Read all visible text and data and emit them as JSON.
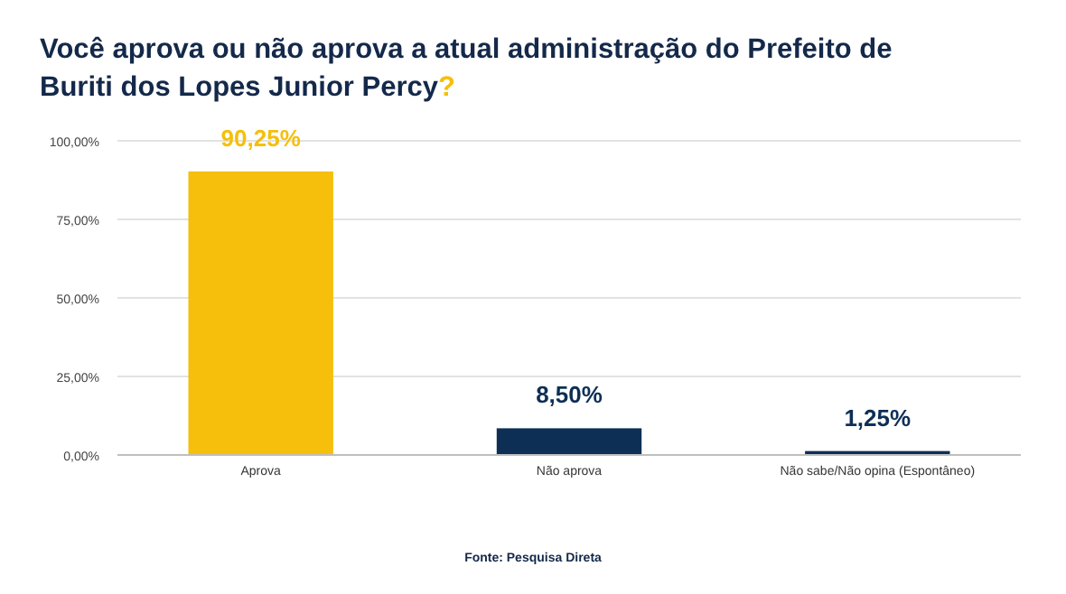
{
  "chart_data": {
    "type": "bar",
    "title": "Você aprova ou não aprova a atual administração do Prefeito de Buriti dos Lopes Junior Percy?",
    "categories": [
      "Aprova",
      "Não aprova",
      "Não sabe/Não opina (Espontâneo)"
    ],
    "values": [
      90.25,
      8.5,
      1.25
    ],
    "colors": [
      "#f5bf0b",
      "#0e2f55",
      "#0e2f55"
    ],
    "value_labels": [
      "90,25%",
      "8,50%",
      "1,25%"
    ],
    "ylim": [
      0,
      100
    ],
    "yticks": [
      {
        "value": 0,
        "label": "0,00%"
      },
      {
        "value": 25,
        "label": "25,00%"
      },
      {
        "value": 50,
        "label": "50,00%"
      },
      {
        "value": 75,
        "label": "75,00%"
      },
      {
        "value": 100,
        "label": "100,00%"
      }
    ],
    "grid": "y",
    "annotations": [
      "Fonte: Pesquisa Direta"
    ]
  }
}
